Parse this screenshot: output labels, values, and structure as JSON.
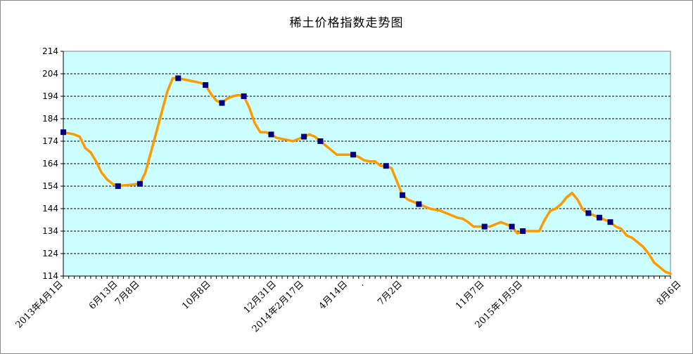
{
  "chart_data": {
    "type": "line",
    "title": "稀土价格指数走势图",
    "xlabel": "",
    "ylabel": "",
    "ylim": [
      114,
      214
    ],
    "yticks": [
      114,
      124,
      134,
      144,
      154,
      164,
      174,
      184,
      194,
      204,
      214
    ],
    "grid": true,
    "legend": "none",
    "colors": {
      "line": "#ff9900",
      "marker": "#000080",
      "plot_bg": "#ccffff",
      "grid": "#000000"
    },
    "xtick_labels": [
      {
        "i": 0,
        "label": "2013年4月1日"
      },
      {
        "i": 10,
        "label": "6月13日"
      },
      {
        "i": 14,
        "label": "7月8日"
      },
      {
        "i": 27,
        "label": "10月8日"
      },
      {
        "i": 39,
        "label": "12月31日"
      },
      {
        "i": 44,
        "label": "2014年2月17日"
      },
      {
        "i": 52,
        "label": "4月14日"
      },
      {
        "i": 55,
        "label": "."
      },
      {
        "i": 62,
        "label": "7月2日"
      },
      {
        "i": 77,
        "label": "11月7日"
      },
      {
        "i": 84,
        "label": "2015年1月5日"
      },
      {
        "i": 113,
        "label": "8月6日"
      }
    ],
    "series": [
      {
        "values": [
          178,
          177.5,
          177,
          176,
          171,
          169,
          165,
          160,
          157,
          155,
          154,
          154.3,
          154.5,
          154.8,
          155,
          160,
          169,
          178,
          187,
          196,
          202,
          202,
          201.5,
          201,
          200.5,
          200,
          199,
          195,
          192,
          191,
          193,
          194,
          194.5,
          194,
          189,
          182,
          178,
          178,
          177,
          175.5,
          175,
          174.5,
          174,
          175,
          176,
          177,
          176,
          174,
          172,
          170,
          168,
          168,
          168,
          168,
          167,
          165.5,
          165,
          165,
          163,
          163,
          162,
          156,
          150,
          148,
          147,
          146,
          145,
          144,
          143.5,
          143,
          142,
          141,
          140,
          139.5,
          138,
          136,
          136,
          136,
          136,
          137,
          138,
          137,
          136,
          133,
          134,
          134,
          134,
          134,
          139,
          143,
          144,
          146,
          149,
          151,
          148,
          143.5,
          142,
          141,
          140,
          139,
          138,
          136,
          135,
          132,
          131,
          129,
          127,
          124,
          120,
          118,
          116,
          115
        ],
        "markers": [
          0,
          10,
          14,
          21,
          26,
          29,
          33,
          38,
          44,
          47,
          53,
          59,
          62,
          65,
          77,
          82,
          84,
          96,
          98,
          100
        ]
      }
    ]
  }
}
